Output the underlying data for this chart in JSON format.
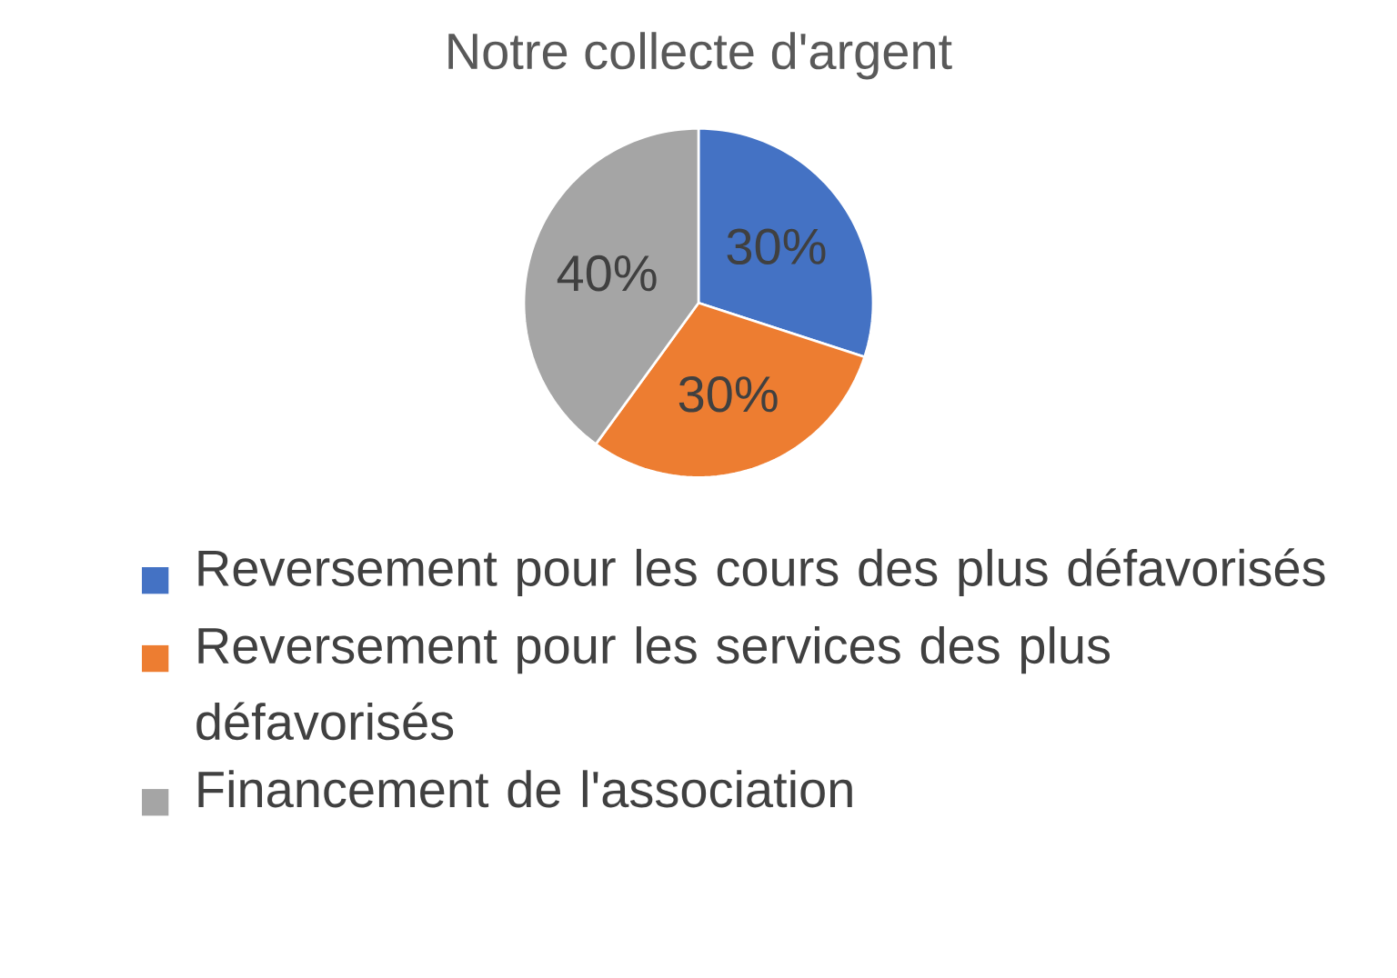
{
  "chart_data": {
    "type": "pie",
    "title": "Notre collecte d'argent",
    "categories": [
      "Reversement pour les cours des plus défavorisés",
      "Reversement pour les services des plus défavorisés",
      "Financement de l'association"
    ],
    "values": [
      30,
      30,
      40
    ],
    "colors": [
      "#4472c4",
      "#ed7d31",
      "#a5a5a5"
    ],
    "value_labels": [
      "30%",
      "30%",
      "40%"
    ],
    "legend": "bottom"
  }
}
